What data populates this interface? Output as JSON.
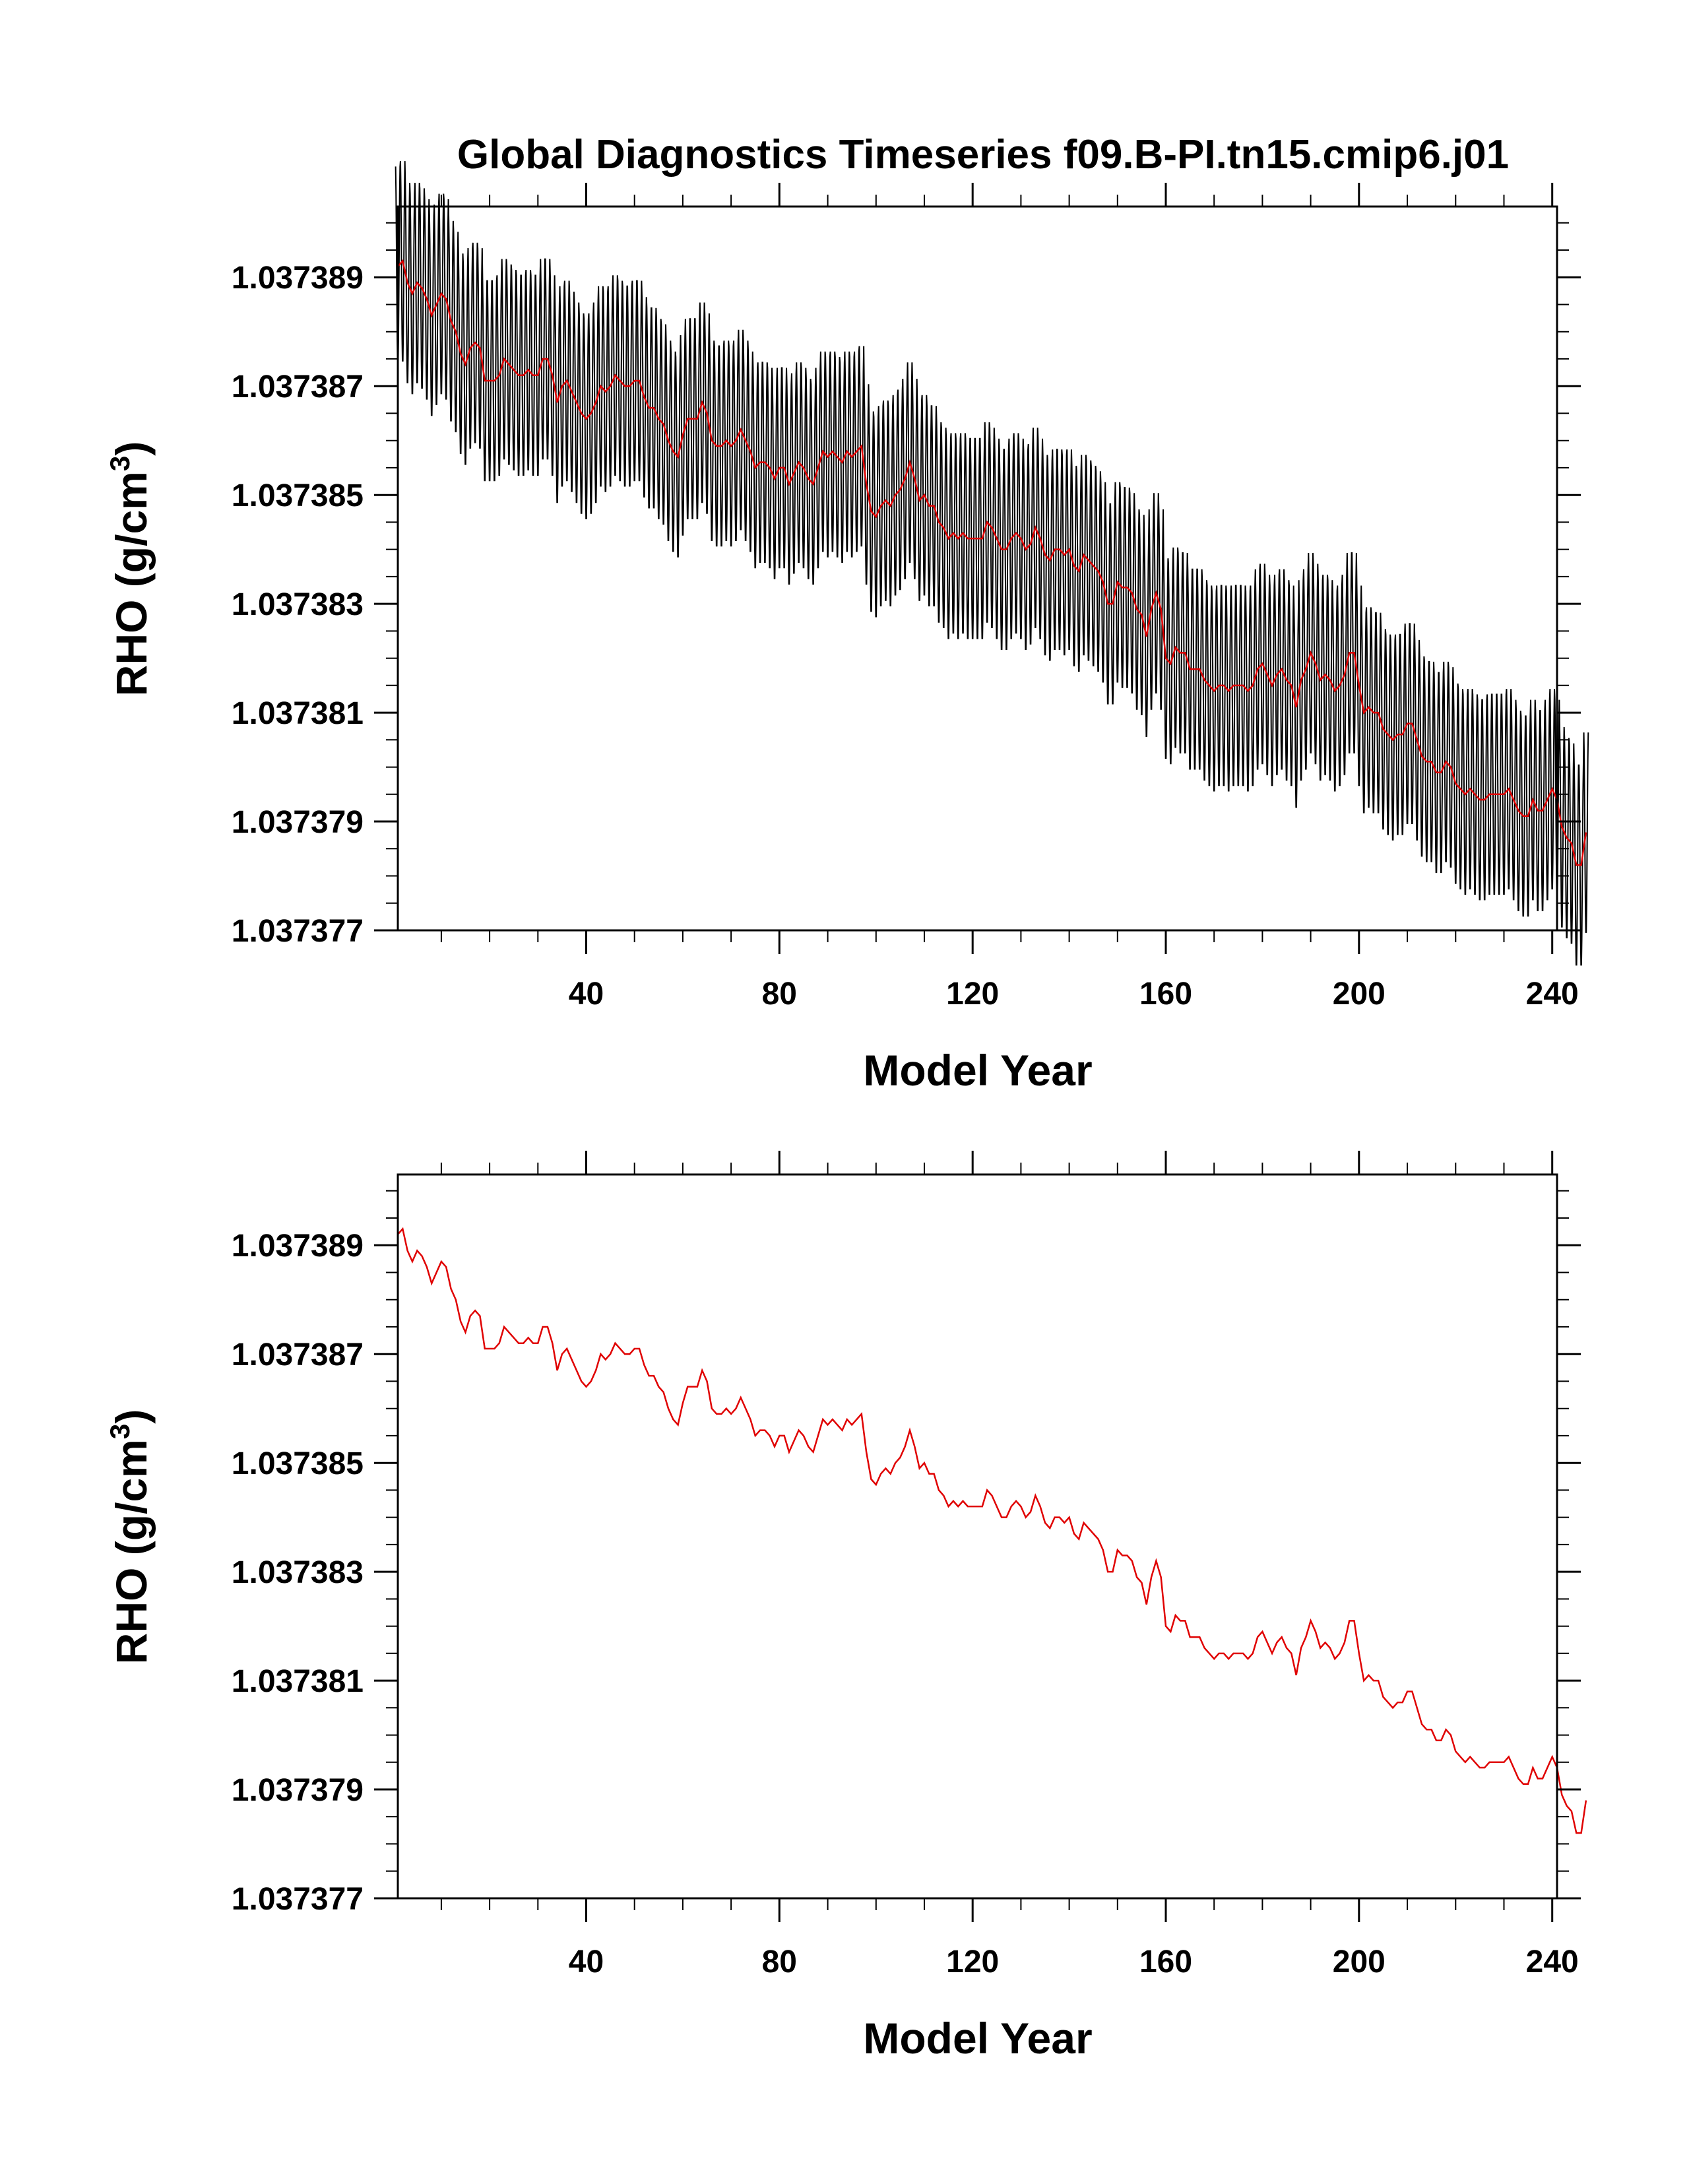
{
  "figure": {
    "title": "Global Diagnostics Timeseries f09.B-PI.tn15.cmip6.j01"
  },
  "chart_data": [
    {
      "type": "line",
      "title": "Global Diagnostics Timeseries f09.B-PI.tn15.cmip6.j01",
      "xlabel": "Model Year",
      "ylabel_main": "RHO (g/cm",
      "ylabel_sup": "3",
      "ylabel_close": ")",
      "xlim": [
        1,
        241
      ],
      "ylim": [
        1.037377,
        1.0373903
      ],
      "xticks": [
        40,
        80,
        120,
        160,
        200,
        240
      ],
      "xtick_labels": [
        "40",
        "80",
        "120",
        "160",
        "200",
        "240"
      ],
      "yticks": [
        1.037377,
        1.037379,
        1.037381,
        1.037383,
        1.037385,
        1.037387,
        1.037389
      ],
      "ytick_labels": [
        "1.037377",
        "1.037379",
        "1.037381",
        "1.037383",
        "1.037385",
        "1.037387",
        "1.037389"
      ],
      "grid": false,
      "series": [
        {
          "kind": "monthly",
          "color": "#000000",
          "annual_amplitude": 1.9e-06
        },
        {
          "kind": "annual",
          "color": "#e00000"
        }
      ]
    },
    {
      "type": "line",
      "title": "",
      "xlabel": "Model Year",
      "ylabel_main": "RHO (g/cm",
      "ylabel_sup": "3",
      "ylabel_close": ")",
      "xlim": [
        1,
        241
      ],
      "ylim": [
        1.037377,
        1.0373903
      ],
      "xticks": [
        40,
        80,
        120,
        160,
        200,
        240
      ],
      "xtick_labels": [
        "40",
        "80",
        "120",
        "160",
        "200",
        "240"
      ],
      "yticks": [
        1.037377,
        1.037379,
        1.037381,
        1.037383,
        1.037385,
        1.037387,
        1.037389
      ],
      "ytick_labels": [
        "1.037377",
        "1.037379",
        "1.037381",
        "1.037383",
        "1.037385",
        "1.037387",
        "1.037389"
      ],
      "grid": false,
      "series": [
        {
          "kind": "annual",
          "color": "#e00000"
        }
      ]
    }
  ],
  "annual_series": {
    "x_start": 1,
    "x_step": 1,
    "y": [
      1.0373892,
      1.0373893,
      1.0373889,
      1.0373887,
      1.0373889,
      1.0373888,
      1.0373886,
      1.0373883,
      1.0373885,
      1.0373887,
      1.0373886,
      1.0373882,
      1.037388,
      1.0373876,
      1.0373874,
      1.0373877,
      1.0373878,
      1.0373877,
      1.0373871,
      1.0373871,
      1.0373871,
      1.0373872,
      1.0373875,
      1.0373874,
      1.0373873,
      1.0373872,
      1.0373872,
      1.0373873,
      1.0373872,
      1.0373872,
      1.0373875,
      1.0373875,
      1.0373872,
      1.0373867,
      1.037387,
      1.0373871,
      1.0373869,
      1.0373867,
      1.0373865,
      1.0373864,
      1.0373865,
      1.0373867,
      1.037387,
      1.0373869,
      1.037387,
      1.0373872,
      1.0373871,
      1.037387,
      1.037387,
      1.0373871,
      1.0373871,
      1.0373868,
      1.0373866,
      1.0373866,
      1.0373864,
      1.0373863,
      1.037386,
      1.0373858,
      1.0373857,
      1.0373861,
      1.0373864,
      1.0373864,
      1.0373864,
      1.0373867,
      1.0373865,
      1.037386,
      1.0373859,
      1.0373859,
      1.037386,
      1.0373859,
      1.037386,
      1.0373862,
      1.037386,
      1.0373858,
      1.0373855,
      1.0373856,
      1.0373856,
      1.0373855,
      1.0373853,
      1.0373855,
      1.0373855,
      1.0373852,
      1.0373854,
      1.0373856,
      1.0373855,
      1.0373853,
      1.0373852,
      1.0373855,
      1.0373858,
      1.0373857,
      1.0373858,
      1.0373857,
      1.0373856,
      1.0373858,
      1.0373857,
      1.0373858,
      1.0373859,
      1.0373852,
      1.0373847,
      1.0373846,
      1.0373848,
      1.0373849,
      1.0373848,
      1.037385,
      1.0373851,
      1.0373853,
      1.0373856,
      1.0373853,
      1.0373849,
      1.037385,
      1.0373848,
      1.0373848,
      1.0373845,
      1.0373844,
      1.0373842,
      1.0373843,
      1.0373842,
      1.0373843,
      1.0373842,
      1.0373842,
      1.0373842,
      1.0373842,
      1.0373845,
      1.0373844,
      1.0373842,
      1.037384,
      1.037384,
      1.0373842,
      1.0373843,
      1.0373842,
      1.037384,
      1.0373841,
      1.0373844,
      1.0373842,
      1.0373839,
      1.0373838,
      1.037384,
      1.037384,
      1.0373839,
      1.037384,
      1.0373837,
      1.0373836,
      1.0373839,
      1.0373838,
      1.0373837,
      1.0373836,
      1.0373834,
      1.037383,
      1.037383,
      1.0373834,
      1.0373833,
      1.0373833,
      1.0373832,
      1.0373829,
      1.0373828,
      1.0373824,
      1.0373829,
      1.0373832,
      1.0373829,
      1.037382,
      1.0373819,
      1.0373822,
      1.0373821,
      1.0373821,
      1.0373818,
      1.0373818,
      1.0373818,
      1.0373816,
      1.0373815,
      1.0373814,
      1.0373815,
      1.0373815,
      1.0373814,
      1.0373815,
      1.0373815,
      1.0373815,
      1.0373814,
      1.0373815,
      1.0373818,
      1.0373819,
      1.0373817,
      1.0373815,
      1.0373817,
      1.0373818,
      1.0373816,
      1.0373815,
      1.0373811,
      1.0373816,
      1.0373818,
      1.0373821,
      1.0373819,
      1.0373816,
      1.0373817,
      1.0373816,
      1.0373814,
      1.0373815,
      1.0373817,
      1.0373821,
      1.0373821,
      1.0373815,
      1.037381,
      1.0373811,
      1.037381,
      1.037381,
      1.0373807,
      1.0373806,
      1.0373805,
      1.0373806,
      1.0373806,
      1.0373808,
      1.0373808,
      1.0373805,
      1.0373802,
      1.0373801,
      1.0373801,
      1.0373799,
      1.0373799,
      1.0373801,
      1.03738,
      1.0373797,
      1.0373796,
      1.0373795,
      1.0373796,
      1.0373795,
      1.0373794,
      1.0373794,
      1.0373795,
      1.0373795,
      1.0373795,
      1.0373795,
      1.0373796,
      1.0373794,
      1.0373792,
      1.0373791,
      1.0373791,
      1.0373794,
      1.0373792,
      1.0373792,
      1.0373794,
      1.0373796,
      1.0373794,
      1.0373789,
      1.0373787,
      1.0373786,
      1.0373782,
      1.0373782,
      1.0373788
    ]
  }
}
